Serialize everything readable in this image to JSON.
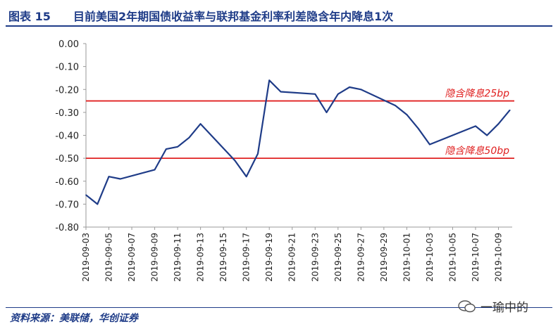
{
  "header": {
    "figure_label": "图表 15",
    "title": "目前美国2年期国债收益率与联邦基金利率利差隐含年内降息1次"
  },
  "footer": {
    "source": "资料来源：美联储，华创证券",
    "watermark": "一瑜中的"
  },
  "chart_data": {
    "type": "line",
    "title": "",
    "xlabel": "",
    "ylabel": "",
    "ylim": [
      -0.8,
      0.0
    ],
    "yticks": [
      "0.00",
      "-0.10",
      "-0.20",
      "-0.30",
      "-0.40",
      "-0.50",
      "-0.60",
      "-0.70",
      "-0.80"
    ],
    "xticks": [
      "2019-09-03",
      "2019-09-05",
      "2019-09-07",
      "2019-09-09",
      "2019-09-11",
      "2019-09-13",
      "2019-09-15",
      "2019-09-17",
      "2019-09-19",
      "2019-09-21",
      "2019-09-23",
      "2019-09-25",
      "2019-09-27",
      "2019-09-29",
      "2019-10-01",
      "2019-10-03",
      "2019-10-05",
      "2019-10-07",
      "2019-10-09"
    ],
    "grid": false,
    "series": [
      {
        "color": "#1f3c88",
        "points": [
          [
            "2019-09-03",
            -0.66
          ],
          [
            "2019-09-04",
            -0.7
          ],
          [
            "2019-09-05",
            -0.58
          ],
          [
            "2019-09-06",
            -0.59
          ],
          [
            "2019-09-09",
            -0.55
          ],
          [
            "2019-09-10",
            -0.46
          ],
          [
            "2019-09-11",
            -0.45
          ],
          [
            "2019-09-12",
            -0.41
          ],
          [
            "2019-09-13",
            -0.35
          ],
          [
            "2019-09-16",
            -0.51
          ],
          [
            "2019-09-17",
            -0.58
          ],
          [
            "2019-09-18",
            -0.48
          ],
          [
            "2019-09-19",
            -0.16
          ],
          [
            "2019-09-20",
            -0.21
          ],
          [
            "2019-09-23",
            -0.22
          ],
          [
            "2019-09-24",
            -0.3
          ],
          [
            "2019-09-25",
            -0.22
          ],
          [
            "2019-09-26",
            -0.19
          ],
          [
            "2019-09-27",
            -0.2
          ],
          [
            "2019-09-30",
            -0.27
          ],
          [
            "2019-10-01",
            -0.31
          ],
          [
            "2019-10-02",
            -0.37
          ],
          [
            "2019-10-03",
            -0.44
          ],
          [
            "2019-10-07",
            -0.36
          ],
          [
            "2019-10-08",
            -0.4
          ],
          [
            "2019-10-09",
            -0.35
          ],
          [
            "2019-10-10",
            -0.29
          ]
        ]
      }
    ],
    "reference_lines": [
      {
        "y": -0.25,
        "label": "隐含降息25bp",
        "color": "#e02020"
      },
      {
        "y": -0.5,
        "label": "隐含降息50bp",
        "color": "#e02020"
      }
    ]
  }
}
